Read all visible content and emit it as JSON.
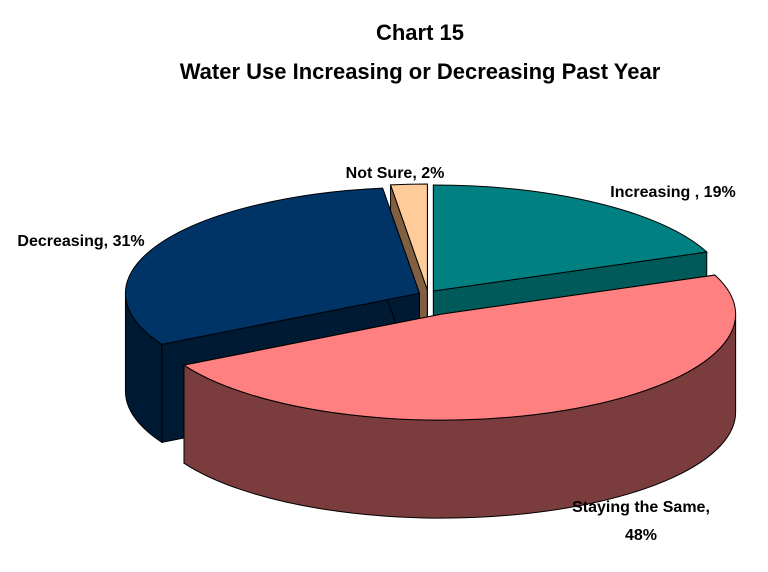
{
  "chart_data": {
    "type": "pie",
    "title": "Chart 15",
    "subtitle": "Water Use Increasing or Decreasing Past Year",
    "style": "3d-exploded",
    "slices": [
      {
        "label": "Increasing",
        "display_label": "Increasing , 19%",
        "value": 19,
        "color": "#008080",
        "side_color": "#005a5a"
      },
      {
        "label": "Staying the Same",
        "display_label_lines": [
          "Staying the Same,",
          "48%"
        ],
        "value": 48,
        "color": "#ff8080",
        "side_color": "#7a3c3c"
      },
      {
        "label": "Decreasing",
        "display_label": "Decreasing, 31%",
        "value": 31,
        "color": "#003366",
        "side_color": "#001a33"
      },
      {
        "label": "Not Sure",
        "display_label": "Not Sure, 2%",
        "value": 2,
        "color": "#ffcc99",
        "side_color": "#806040"
      }
    ]
  }
}
